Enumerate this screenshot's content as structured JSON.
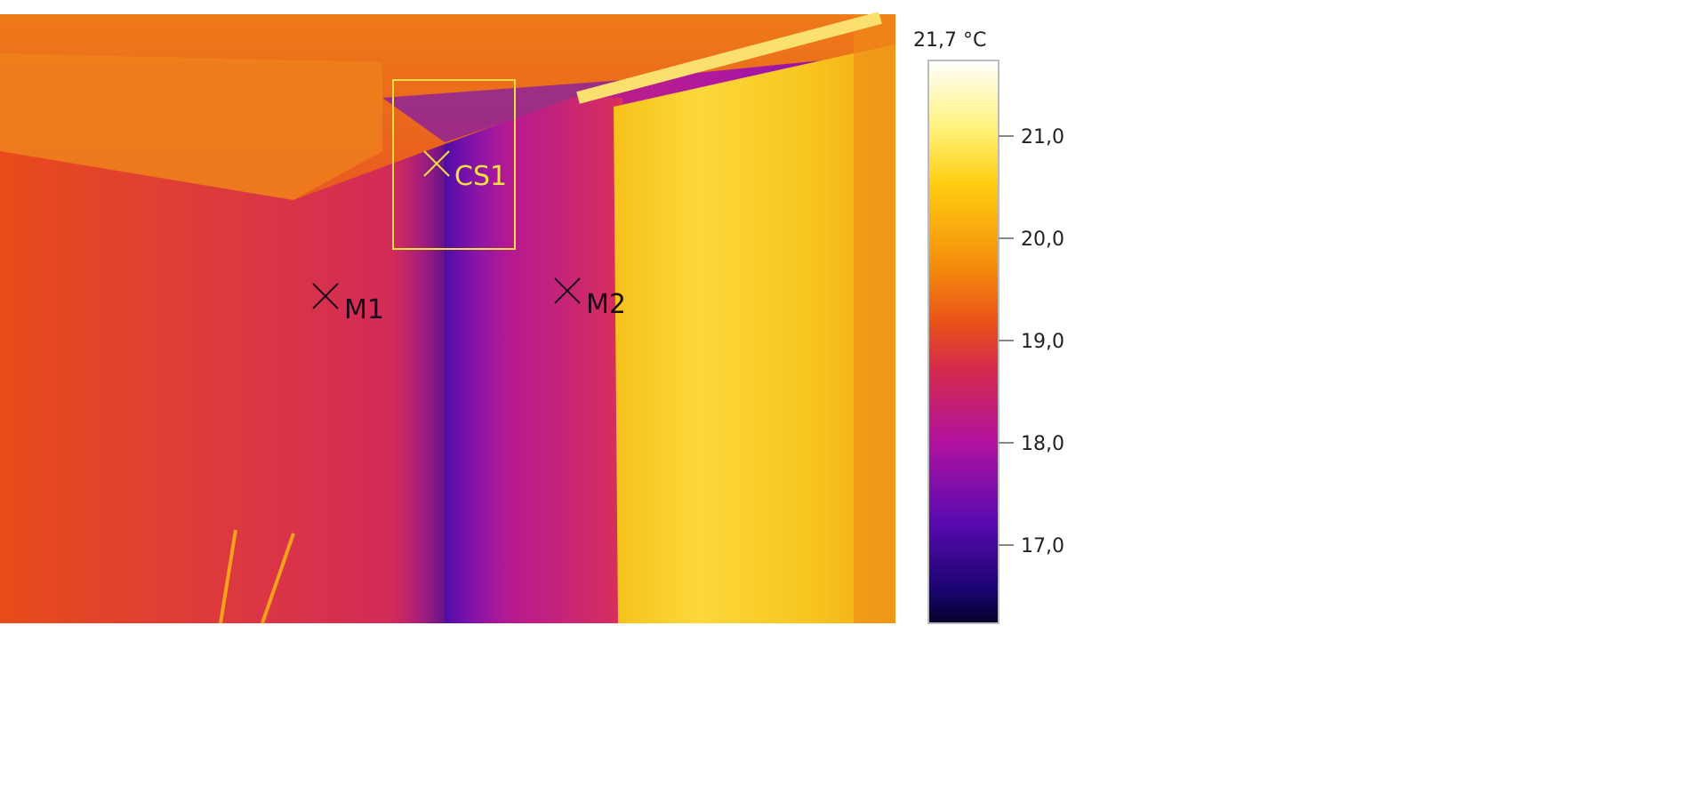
{
  "markers": [
    {
      "label": "CS1"
    },
    {
      "label": "M1"
    },
    {
      "label": "M2"
    }
  ],
  "color_scale": {
    "max_label": "21,7 °C",
    "ticks": [
      "21,0",
      "20,0",
      "19,0",
      "18,0",
      "17,0"
    ]
  }
}
